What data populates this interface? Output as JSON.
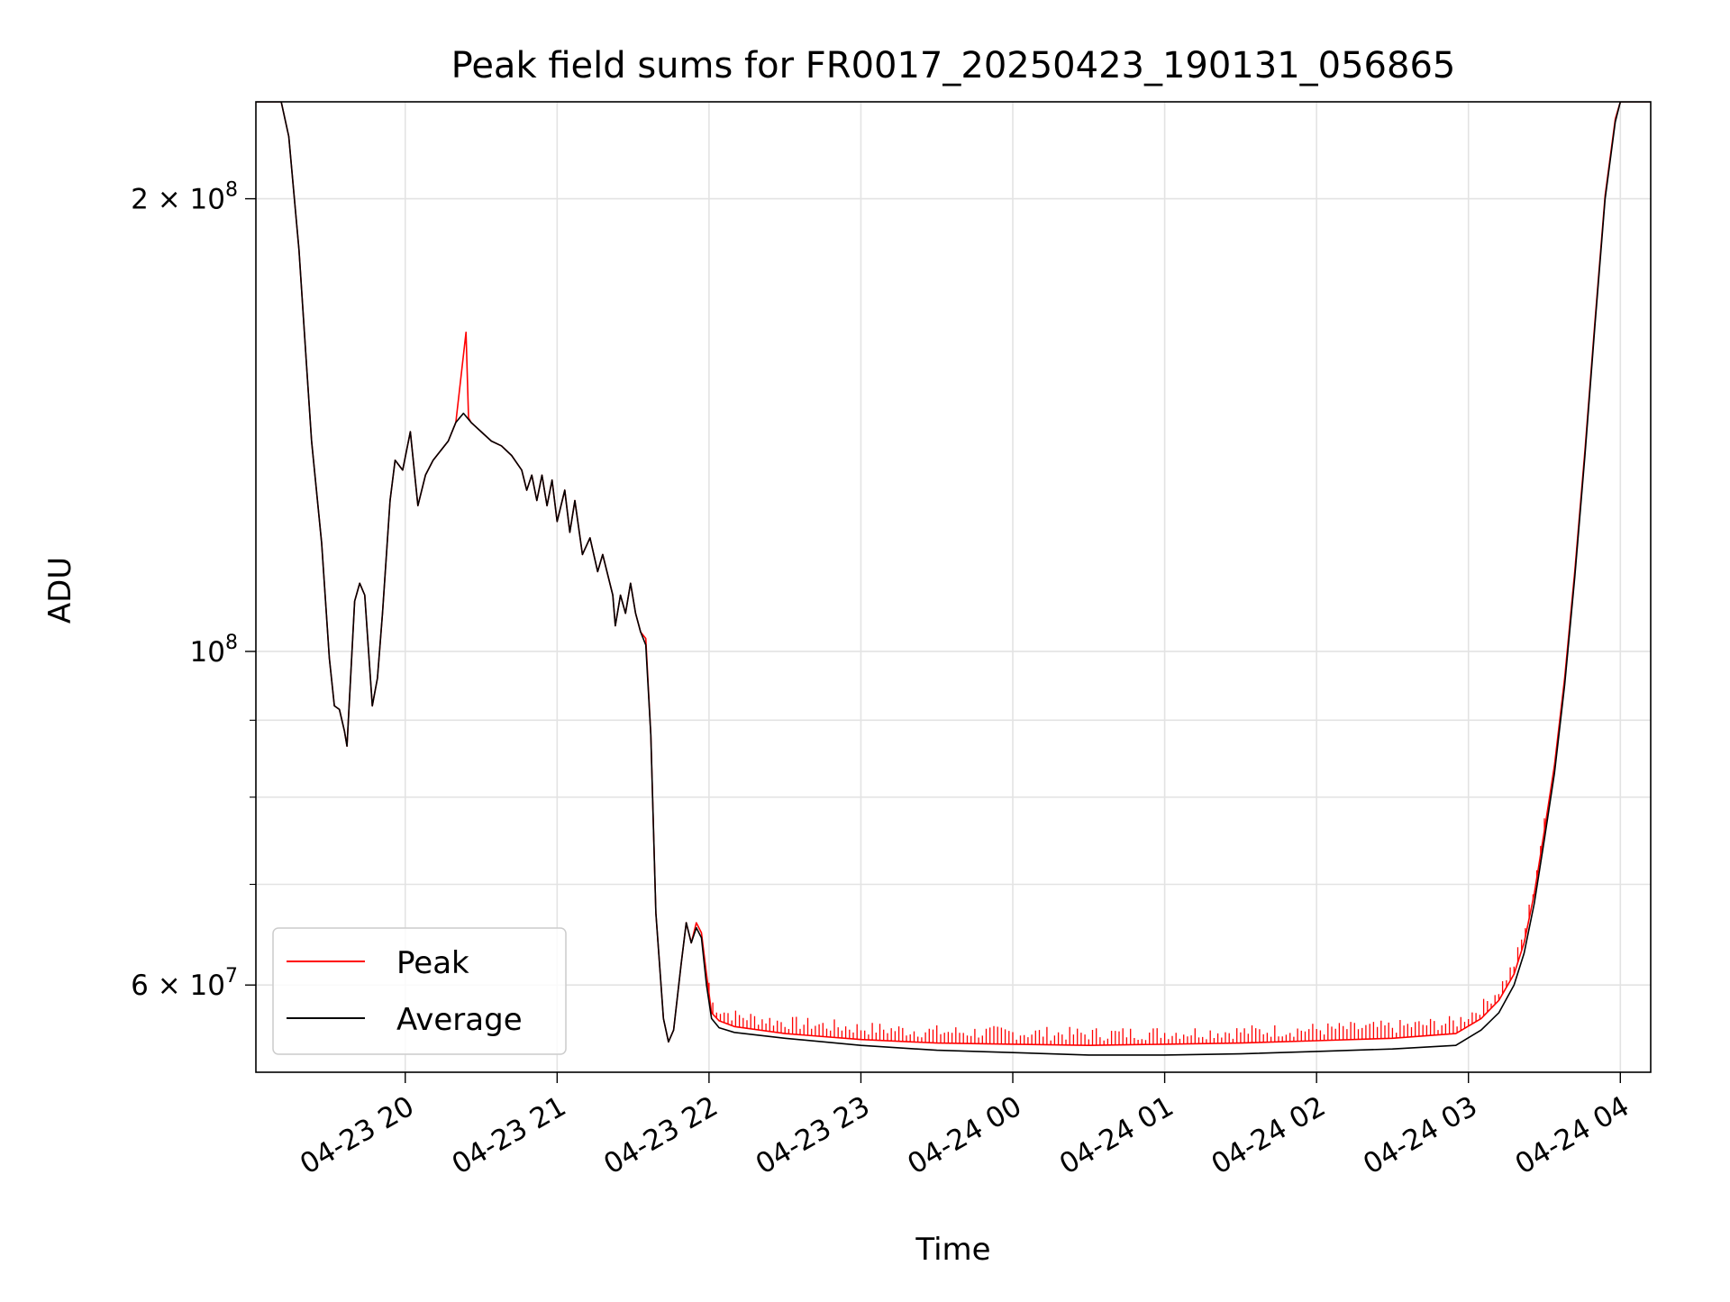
{
  "chart_data": {
    "type": "line",
    "title": "Peak field sums for FR0017_20250423_190131_056865",
    "xlabel": "Time",
    "ylabel": "ADU",
    "yscale": "log",
    "grid": true,
    "legend_position": "lower-left",
    "xlim": [
      "2025-04-23 19:01",
      "2025-04-24 04:12"
    ],
    "ylim": [
      52500000,
      232000000
    ],
    "x_ticks": [
      {
        "t": "2025-04-23 20:00",
        "label": "04-23 20"
      },
      {
        "t": "2025-04-23 21:00",
        "label": "04-23 21"
      },
      {
        "t": "2025-04-23 22:00",
        "label": "04-23 22"
      },
      {
        "t": "2025-04-23 23:00",
        "label": "04-23 23"
      },
      {
        "t": "2025-04-24 00:00",
        "label": "04-24 00"
      },
      {
        "t": "2025-04-24 01:00",
        "label": "04-24 01"
      },
      {
        "t": "2025-04-24 02:00",
        "label": "04-24 02"
      },
      {
        "t": "2025-04-24 03:00",
        "label": "04-24 03"
      },
      {
        "t": "2025-04-24 04:00",
        "label": "04-24 04"
      }
    ],
    "y_major_ticks": [
      {
        "v": 60000000,
        "base": "6 × 10",
        "exp": "7"
      },
      {
        "v": 100000000,
        "base": "10",
        "exp": "8"
      },
      {
        "v": 200000000,
        "base": "2 × 10",
        "exp": "8"
      }
    ],
    "y_minor_ticks": [
      70000000,
      80000000,
      90000000
    ],
    "series": [
      {
        "name": "Average",
        "color": "#000000",
        "points": [
          [
            "2025-04-23 19:01",
            232000000
          ],
          [
            "2025-04-23 19:11",
            232000000
          ],
          [
            "2025-04-23 19:14",
            220000000
          ],
          [
            "2025-04-23 19:18",
            185000000
          ],
          [
            "2025-04-23 19:21",
            155000000
          ],
          [
            "2025-04-23 19:23",
            138000000
          ],
          [
            "2025-04-23 19:27",
            118000000
          ],
          [
            "2025-04-23 19:30",
            99000000
          ],
          [
            "2025-04-23 19:32",
            92000000
          ],
          [
            "2025-04-23 19:34",
            91500000
          ],
          [
            "2025-04-23 19:36",
            88500000
          ],
          [
            "2025-04-23 19:37",
            86500000
          ],
          [
            "2025-04-23 19:40",
            108000000
          ],
          [
            "2025-04-23 19:42",
            111000000
          ],
          [
            "2025-04-23 19:44",
            109000000
          ],
          [
            "2025-04-23 19:47",
            92000000
          ],
          [
            "2025-04-23 19:49",
            96000000
          ],
          [
            "2025-04-23 19:51",
            106000000
          ],
          [
            "2025-04-23 19:54",
            126000000
          ],
          [
            "2025-04-23 19:56",
            134000000
          ],
          [
            "2025-04-23 19:59",
            132000000
          ],
          [
            "2025-04-23 20:02",
            140000000
          ],
          [
            "2025-04-23 20:05",
            125000000
          ],
          [
            "2025-04-23 20:08",
            131000000
          ],
          [
            "2025-04-23 20:11",
            134000000
          ],
          [
            "2025-04-23 20:14",
            136000000
          ],
          [
            "2025-04-23 20:17",
            138000000
          ],
          [
            "2025-04-23 20:20",
            142000000
          ],
          [
            "2025-04-23 20:23",
            144000000
          ],
          [
            "2025-04-23 20:26",
            142000000
          ],
          [
            "2025-04-23 20:30",
            140000000
          ],
          [
            "2025-04-23 20:34",
            138000000
          ],
          [
            "2025-04-23 20:38",
            137000000
          ],
          [
            "2025-04-23 20:42",
            135000000
          ],
          [
            "2025-04-23 20:46",
            132000000
          ],
          [
            "2025-04-23 20:48",
            128000000
          ],
          [
            "2025-04-23 20:50",
            131000000
          ],
          [
            "2025-04-23 20:52",
            126000000
          ],
          [
            "2025-04-23 20:54",
            131000000
          ],
          [
            "2025-04-23 20:56",
            125000000
          ],
          [
            "2025-04-23 20:58",
            130000000
          ],
          [
            "2025-04-23 21:00",
            122000000
          ],
          [
            "2025-04-23 21:03",
            128000000
          ],
          [
            "2025-04-23 21:05",
            120000000
          ],
          [
            "2025-04-23 21:07",
            126000000
          ],
          [
            "2025-04-23 21:10",
            116000000
          ],
          [
            "2025-04-23 21:13",
            119000000
          ],
          [
            "2025-04-23 21:16",
            113000000
          ],
          [
            "2025-04-23 21:18",
            116000000
          ],
          [
            "2025-04-23 21:22",
            109000000
          ],
          [
            "2025-04-23 21:23",
            104000000
          ],
          [
            "2025-04-23 21:25",
            109000000
          ],
          [
            "2025-04-23 21:27",
            106000000
          ],
          [
            "2025-04-23 21:29",
            111000000
          ],
          [
            "2025-04-23 21:31",
            106000000
          ],
          [
            "2025-04-23 21:33",
            103000000
          ],
          [
            "2025-04-23 21:35",
            101000000
          ],
          [
            "2025-04-23 21:37",
            88000000
          ],
          [
            "2025-04-23 21:39",
            67000000
          ],
          [
            "2025-04-23 21:42",
            57000000
          ],
          [
            "2025-04-23 21:44",
            55000000
          ],
          [
            "2025-04-23 21:46",
            56000000
          ],
          [
            "2025-04-23 21:49",
            62000000
          ],
          [
            "2025-04-23 21:51",
            66000000
          ],
          [
            "2025-04-23 21:53",
            64000000
          ],
          [
            "2025-04-23 21:55",
            65500000
          ],
          [
            "2025-04-23 21:57",
            64500000
          ],
          [
            "2025-04-23 21:59",
            60000000
          ],
          [
            "2025-04-23 22:01",
            57000000
          ],
          [
            "2025-04-23 22:04",
            56200000
          ],
          [
            "2025-04-23 22:10",
            55800000
          ],
          [
            "2025-04-23 22:30",
            55300000
          ],
          [
            "2025-04-23 23:00",
            54700000
          ],
          [
            "2025-04-23 23:30",
            54300000
          ],
          [
            "2025-04-24 00:00",
            54100000
          ],
          [
            "2025-04-24 00:30",
            53900000
          ],
          [
            "2025-04-24 01:00",
            53900000
          ],
          [
            "2025-04-24 01:30",
            54000000
          ],
          [
            "2025-04-24 02:00",
            54200000
          ],
          [
            "2025-04-24 02:30",
            54400000
          ],
          [
            "2025-04-24 02:55",
            54700000
          ],
          [
            "2025-04-24 03:05",
            56000000
          ],
          [
            "2025-04-24 03:12",
            57500000
          ],
          [
            "2025-04-24 03:18",
            60000000
          ],
          [
            "2025-04-24 03:22",
            63000000
          ],
          [
            "2025-04-24 03:26",
            68000000
          ],
          [
            "2025-04-24 03:30",
            75000000
          ],
          [
            "2025-04-24 03:34",
            83000000
          ],
          [
            "2025-04-24 03:38",
            95000000
          ],
          [
            "2025-04-24 03:42",
            112000000
          ],
          [
            "2025-04-24 03:46",
            135000000
          ],
          [
            "2025-04-24 03:50",
            165000000
          ],
          [
            "2025-04-24 03:54",
            200000000
          ],
          [
            "2025-04-24 03:58",
            225000000
          ],
          [
            "2025-04-24 04:00",
            232000000
          ],
          [
            "2025-04-24 04:12",
            232000000
          ]
        ]
      },
      {
        "name": "Peak",
        "color": "#ff0000",
        "points": [
          [
            "2025-04-23 19:01",
            232000000
          ],
          [
            "2025-04-23 19:11",
            232000000
          ],
          [
            "2025-04-23 19:14",
            220000000
          ],
          [
            "2025-04-23 19:18",
            185000000
          ],
          [
            "2025-04-23 19:21",
            155000000
          ],
          [
            "2025-04-23 19:23",
            138000000
          ],
          [
            "2025-04-23 19:27",
            118000000
          ],
          [
            "2025-04-23 19:30",
            99000000
          ],
          [
            "2025-04-23 19:32",
            92000000
          ],
          [
            "2025-04-23 19:34",
            91500000
          ],
          [
            "2025-04-23 19:36",
            88500000
          ],
          [
            "2025-04-23 19:37",
            86500000
          ],
          [
            "2025-04-23 19:40",
            108000000
          ],
          [
            "2025-04-23 19:42",
            111000000
          ],
          [
            "2025-04-23 19:44",
            109000000
          ],
          [
            "2025-04-23 19:47",
            92000000
          ],
          [
            "2025-04-23 19:49",
            96000000
          ],
          [
            "2025-04-23 19:51",
            106000000
          ],
          [
            "2025-04-23 19:54",
            126000000
          ],
          [
            "2025-04-23 19:56",
            134000000
          ],
          [
            "2025-04-23 19:59",
            132000000
          ],
          [
            "2025-04-23 20:02",
            140000000
          ],
          [
            "2025-04-23 20:05",
            125000000
          ],
          [
            "2025-04-23 20:08",
            131000000
          ],
          [
            "2025-04-23 20:11",
            134000000
          ],
          [
            "2025-04-23 20:14",
            136000000
          ],
          [
            "2025-04-23 20:17",
            138000000
          ],
          [
            "2025-04-23 20:20",
            142000000
          ],
          [
            "2025-04-23 20:24",
            163000000
          ],
          [
            "2025-04-23 20:25",
            143000000
          ],
          [
            "2025-04-23 20:26",
            142000000
          ],
          [
            "2025-04-23 20:30",
            140000000
          ],
          [
            "2025-04-23 20:34",
            138000000
          ],
          [
            "2025-04-23 20:38",
            137000000
          ],
          [
            "2025-04-23 20:42",
            135000000
          ],
          [
            "2025-04-23 20:46",
            132000000
          ],
          [
            "2025-04-23 20:48",
            128000000
          ],
          [
            "2025-04-23 20:50",
            131000000
          ],
          [
            "2025-04-23 20:52",
            126000000
          ],
          [
            "2025-04-23 20:54",
            131000000
          ],
          [
            "2025-04-23 20:56",
            125000000
          ],
          [
            "2025-04-23 20:58",
            130000000
          ],
          [
            "2025-04-23 21:00",
            122000000
          ],
          [
            "2025-04-23 21:03",
            128000000
          ],
          [
            "2025-04-23 21:05",
            120000000
          ],
          [
            "2025-04-23 21:07",
            126000000
          ],
          [
            "2025-04-23 21:10",
            116000000
          ],
          [
            "2025-04-23 21:13",
            119000000
          ],
          [
            "2025-04-23 21:16",
            113000000
          ],
          [
            "2025-04-23 21:18",
            116000000
          ],
          [
            "2025-04-23 21:22",
            109000000
          ],
          [
            "2025-04-23 21:23",
            104000000
          ],
          [
            "2025-04-23 21:25",
            109000000
          ],
          [
            "2025-04-23 21:27",
            106000000
          ],
          [
            "2025-04-23 21:29",
            111000000
          ],
          [
            "2025-04-23 21:31",
            106000000
          ],
          [
            "2025-04-23 21:33",
            103000000
          ],
          [
            "2025-04-23 21:35",
            102000000
          ],
          [
            "2025-04-23 21:37",
            88000000
          ],
          [
            "2025-04-23 21:39",
            67000000
          ],
          [
            "2025-04-23 21:42",
            57000000
          ],
          [
            "2025-04-23 21:44",
            55000000
          ],
          [
            "2025-04-23 21:46",
            56000000
          ],
          [
            "2025-04-23 21:49",
            62000000
          ],
          [
            "2025-04-23 21:51",
            66000000
          ],
          [
            "2025-04-23 21:53",
            64000000
          ],
          [
            "2025-04-23 21:55",
            66000000
          ],
          [
            "2025-04-23 21:57",
            65000000
          ],
          [
            "2025-04-23 21:59",
            61000000
          ],
          [
            "2025-04-23 22:01",
            57500000
          ],
          [
            "2025-04-23 22:04",
            56800000
          ],
          [
            "2025-04-23 22:10",
            56300000
          ],
          [
            "2025-04-23 22:30",
            55700000
          ],
          [
            "2025-04-23 23:00",
            55200000
          ],
          [
            "2025-04-23 23:30",
            54900000
          ],
          [
            "2025-04-24 00:00",
            54800000
          ],
          [
            "2025-04-24 00:30",
            54700000
          ],
          [
            "2025-04-24 01:00",
            54800000
          ],
          [
            "2025-04-24 01:30",
            54900000
          ],
          [
            "2025-04-24 02:00",
            55100000
          ],
          [
            "2025-04-24 02:30",
            55300000
          ],
          [
            "2025-04-24 02:55",
            55700000
          ],
          [
            "2025-04-24 03:05",
            57000000
          ],
          [
            "2025-04-24 03:12",
            58600000
          ],
          [
            "2025-04-24 03:18",
            61000000
          ],
          [
            "2025-04-24 03:22",
            64000000
          ],
          [
            "2025-04-24 03:26",
            69000000
          ],
          [
            "2025-04-24 03:30",
            76000000
          ],
          [
            "2025-04-24 03:34",
            84000000
          ],
          [
            "2025-04-24 03:38",
            96000000
          ],
          [
            "2025-04-24 03:42",
            113000000
          ],
          [
            "2025-04-24 03:46",
            136000000
          ],
          [
            "2025-04-24 03:50",
            166000000
          ],
          [
            "2025-04-24 03:54",
            201000000
          ],
          [
            "2025-04-24 03:58",
            226000000
          ],
          [
            "2025-04-24 04:00",
            232000000
          ],
          [
            "2025-04-24 04:12",
            232000000
          ]
        ],
        "noise_spikes": {
          "from": "2025-04-23 22:00",
          "to": "2025-04-24 03:30",
          "typical_amplitude_adu": 1200000
        }
      }
    ],
    "legend": [
      {
        "name": "Peak",
        "color": "#ff0000"
      },
      {
        "name": "Average",
        "color": "#000000"
      }
    ]
  }
}
